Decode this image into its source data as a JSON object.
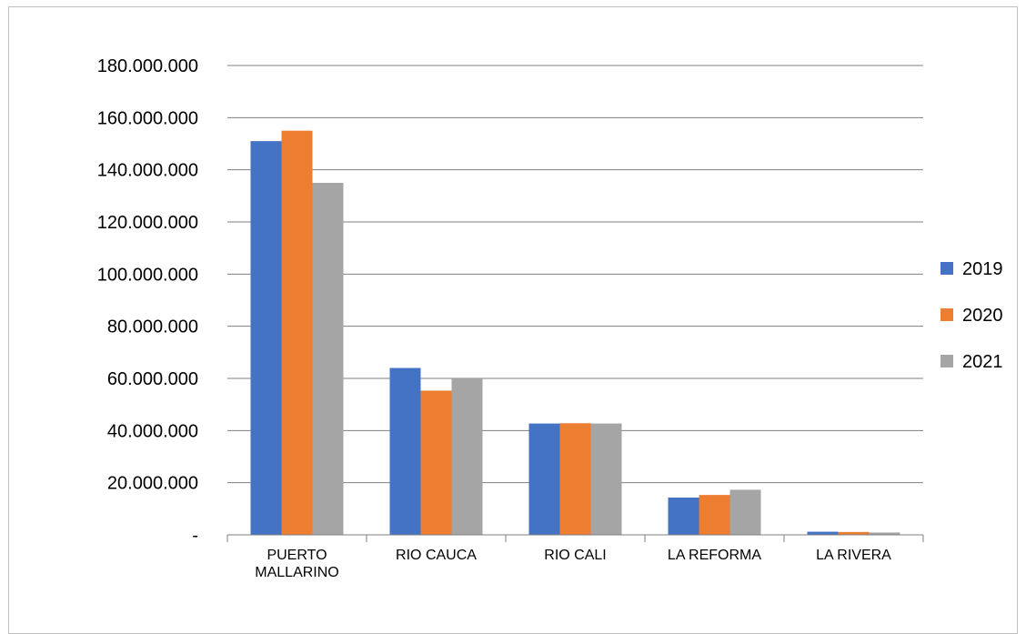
{
  "chart_data": {
    "type": "bar",
    "title": "",
    "xlabel": "",
    "ylabel": "",
    "categories": [
      [
        "PUERTO",
        "MALLARINO"
      ],
      [
        "RIO CAUCA"
      ],
      [
        "RIO CALI"
      ],
      [
        "LA REFORMA"
      ],
      [
        "LA RIVERA"
      ]
    ],
    "series": [
      {
        "name": "2019",
        "color": "#4472C4",
        "values": [
          151000000,
          64000000,
          42700000,
          14300000,
          1200000
        ]
      },
      {
        "name": "2020",
        "color": "#ED7D31",
        "values": [
          155000000,
          55300000,
          42800000,
          15300000,
          1100000
        ]
      },
      {
        "name": "2021",
        "color": "#A5A5A5",
        "values": [
          135000000,
          60000000,
          42700000,
          17300000,
          900000
        ]
      }
    ],
    "ylim": [
      0,
      180000000
    ],
    "yticks": [
      {
        "value": 0,
        "label": "-"
      },
      {
        "value": 20000000,
        "label": "20.000.000"
      },
      {
        "value": 40000000,
        "label": "40.000.000"
      },
      {
        "value": 60000000,
        "label": "60.000.000"
      },
      {
        "value": 80000000,
        "label": "80.000.000"
      },
      {
        "value": 100000000,
        "label": "100.000.000"
      },
      {
        "value": 120000000,
        "label": "120.000.000"
      },
      {
        "value": 140000000,
        "label": "140.000.000"
      },
      {
        "value": 160000000,
        "label": "160.000.000"
      },
      {
        "value": 180000000,
        "label": "180.000.000"
      }
    ],
    "grid": true,
    "legend_position": "right"
  }
}
